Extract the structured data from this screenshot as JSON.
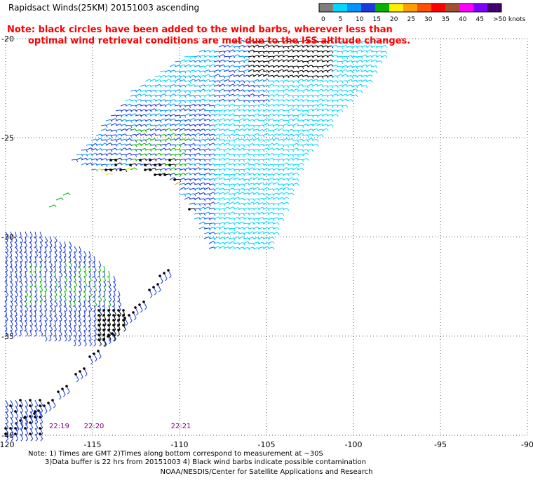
{
  "title": "Rapidsact Winds(25KM) 20151003 ascending",
  "note": {
    "line1": "Note: black circles have been added to the wind barbs, wherever less than",
    "line2": "optimal wind retrieval conditions are met due to the ISS altitude changes."
  },
  "legend": {
    "labels": [
      "0",
      "5",
      "10",
      "15",
      "20",
      "25",
      "30",
      "35",
      "40",
      "45",
      ">50 knots"
    ],
    "colors": [
      "#7f7f7f",
      "#00d8ff",
      "#0094ff",
      "#1a3ae0",
      "#00b400",
      "#fff000",
      "#ffa000",
      "#ff5000",
      "#ff0000",
      "#a05030",
      "#ff00ff",
      "#7f00ff",
      "#400070"
    ]
  },
  "axes": {
    "x_ticks": [
      "-120",
      "-115",
      "-110",
      "-105",
      "-100",
      "-95",
      "-90"
    ],
    "y_ticks": [
      "-20",
      "-25",
      "-30",
      "-35",
      "-40"
    ],
    "xlim": [
      -120,
      -90
    ],
    "ylim": [
      -40,
      -20
    ]
  },
  "times": [
    "22:19",
    "22:20",
    "22:21"
  ],
  "time_color": "#800080",
  "footnote": {
    "line1": "Note: 1) Times are GMT 2)Times along bottom correspond to measurement at ~30S",
    "line2": "3)Data buffer is 22 hrs from 20151003 4) Black wind barbs indicate possible contamination"
  },
  "credit": "NOAA/NESDIS/Center for Satellite Applications and Research"
}
